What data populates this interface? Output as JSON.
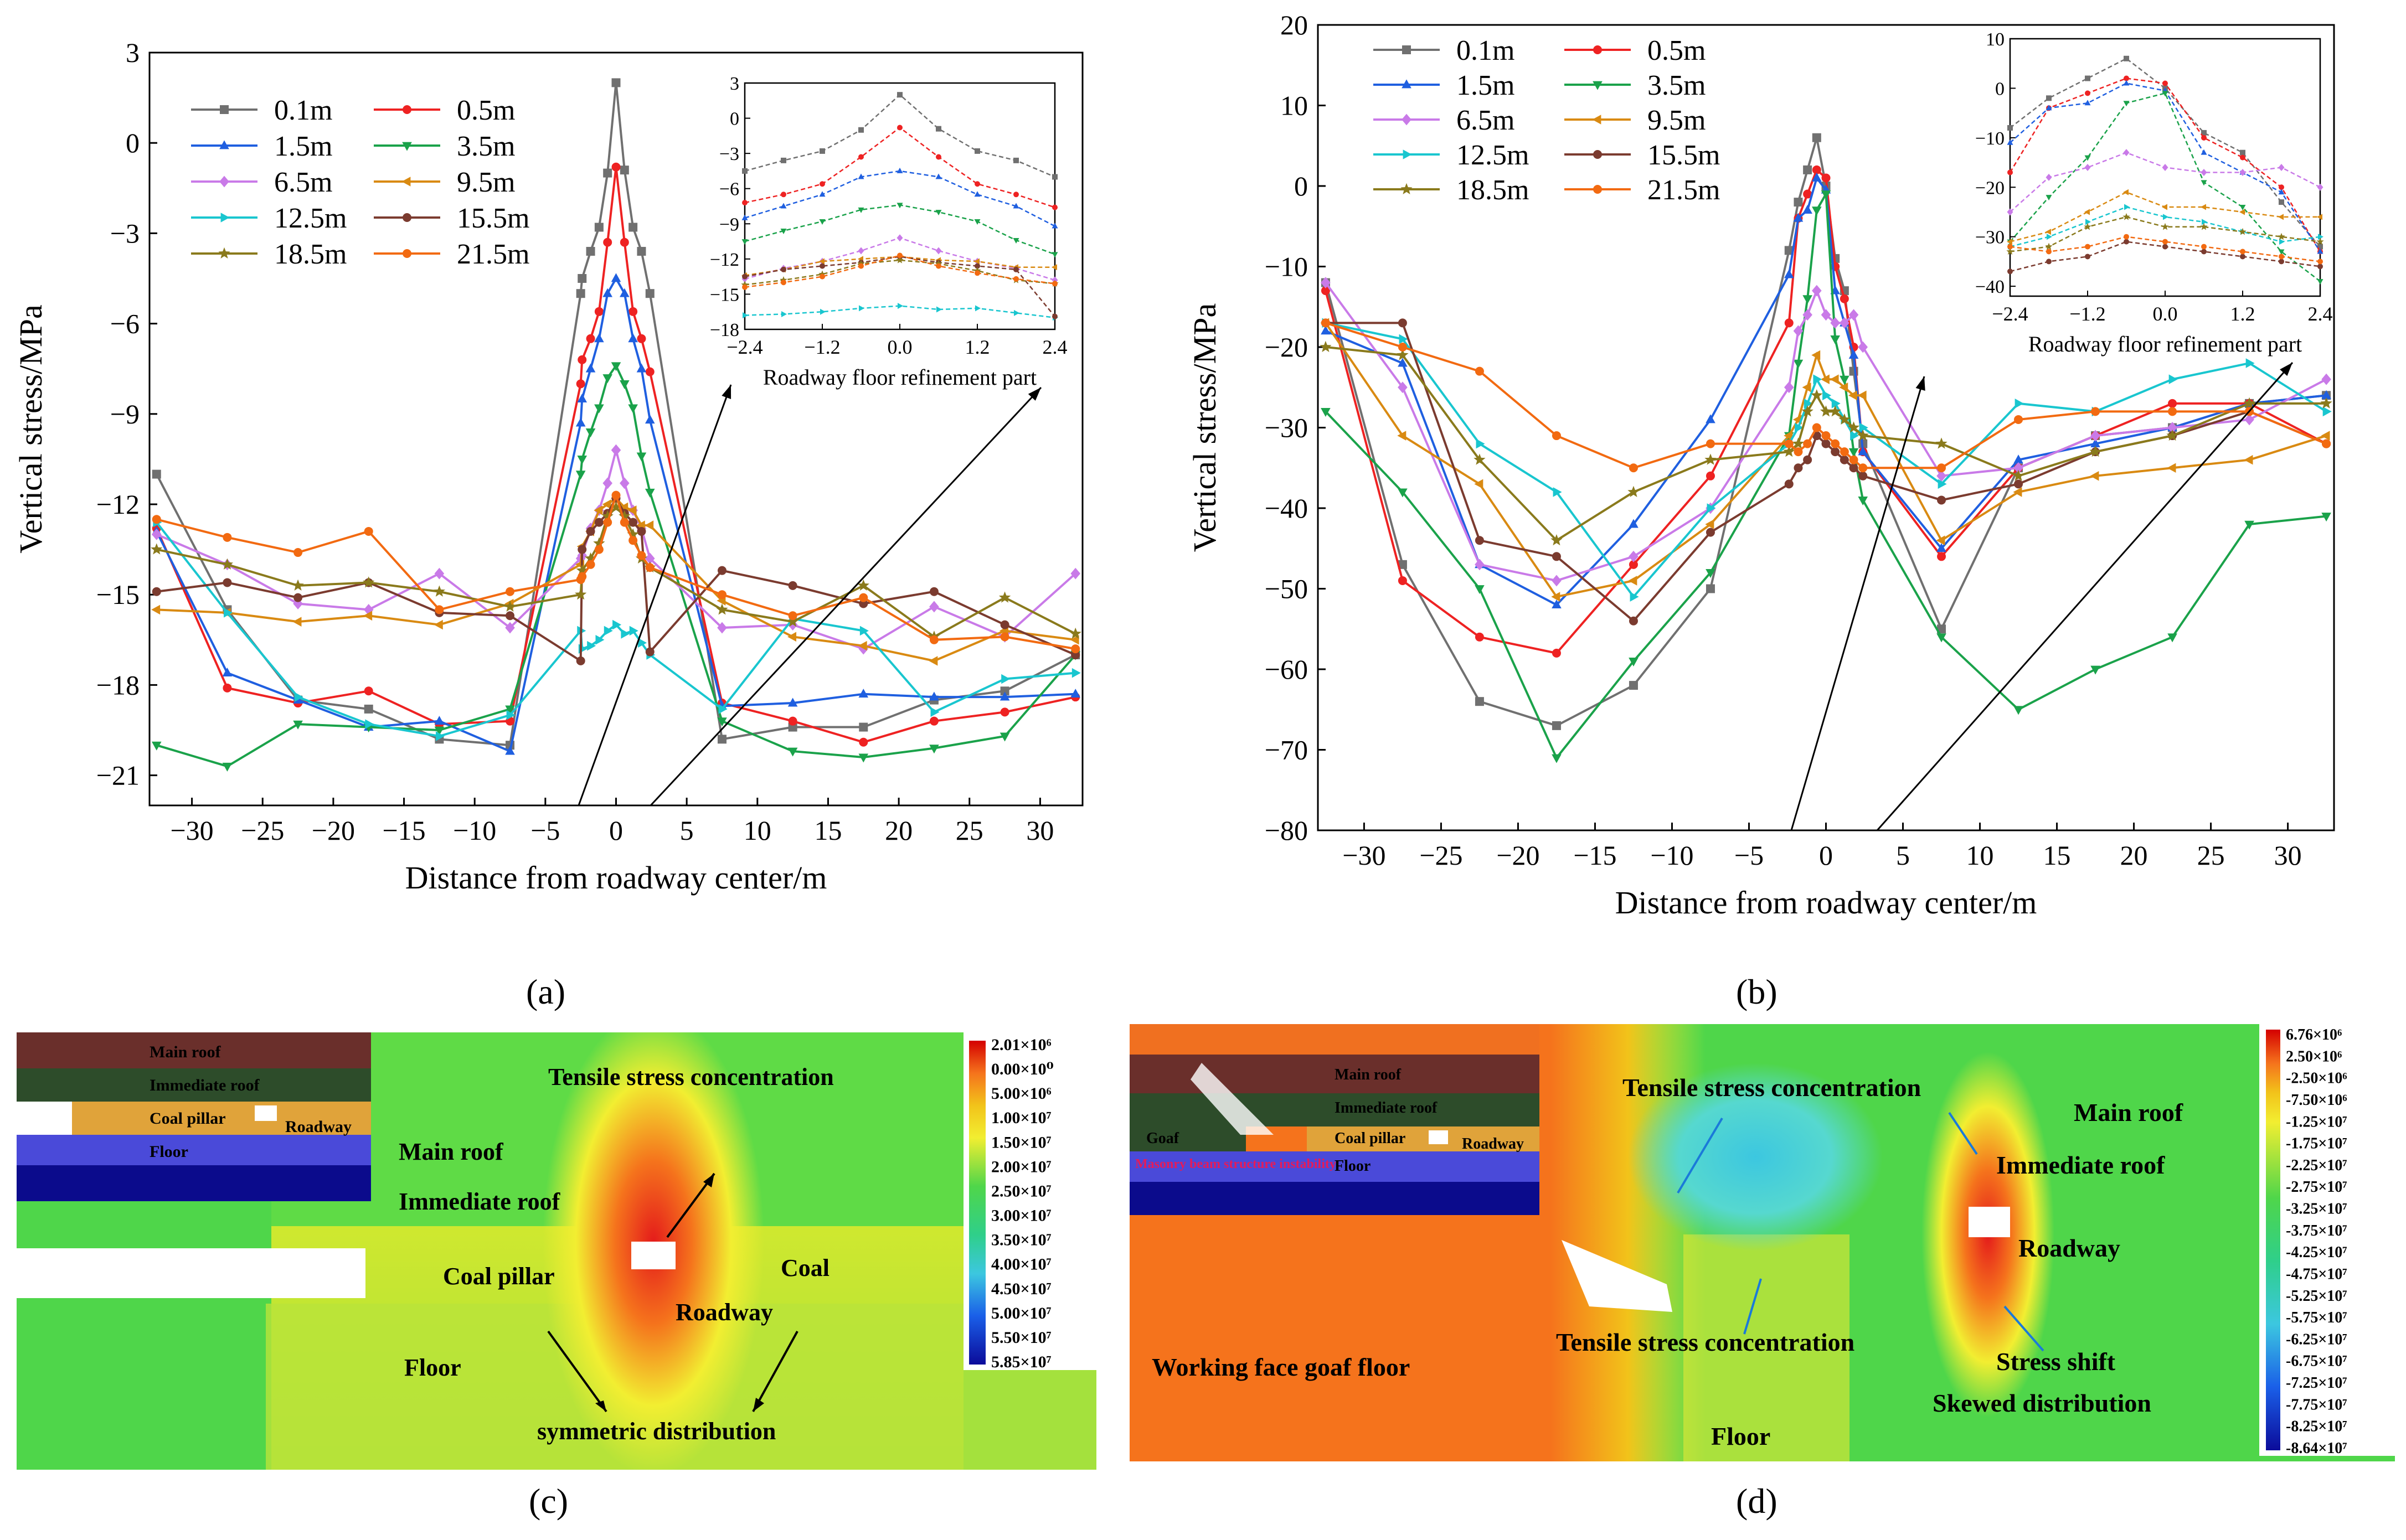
{
  "panel_labels": {
    "a": "(a)",
    "b": "(b)",
    "c": "(c)",
    "d": "(d)"
  },
  "legend_layers": {
    "main_roof": "Main roof",
    "immediate_roof": "Immediate roof",
    "coal_pillar": "Coal pillar",
    "roadway": "Roadway",
    "floor": "Floor",
    "goaf": "Goaf",
    "masonry": "Masonry beam structure instability"
  },
  "annotations_c": {
    "tensile": "Tensile stress concentration",
    "main_roof": "Main roof",
    "immediate_roof": "Immediate roof",
    "coal_pillar": "Coal pillar",
    "coal": "Coal",
    "roadway": "Roadway",
    "floor": "Floor",
    "symmetric": "symmetric distribution"
  },
  "annotations_d": {
    "tensile_top": "Tensile stress concentration",
    "main_roof": "Main roof",
    "immediate_roof": "Immediate roof",
    "roadway": "Roadway",
    "working_face": "Working face goaf floor",
    "tensile_bottom": "Tensile stress concentration",
    "stress_shift": "Stress shift",
    "skewed": "Skewed distribution",
    "floor": "Floor"
  },
  "colorbar_c": [
    "2.01×10⁶",
    "0.00×10⁰",
    "5.00×10⁶",
    "1.00×10⁷",
    "1.50×10⁷",
    "2.00×10⁷",
    "2.50×10⁷",
    "3.00×10⁷",
    "3.50×10⁷",
    "4.00×10⁷",
    "4.50×10⁷",
    "5.00×10⁷",
    "5.50×10⁷",
    "5.85×10⁷"
  ],
  "colorbar_d": [
    "6.76×10⁶",
    "2.50×10⁶",
    "-2.50×10⁶",
    "-7.50×10⁶",
    "-1.25×10⁷",
    "-1.75×10⁷",
    "-2.25×10⁷",
    "-2.75×10⁷",
    "-3.25×10⁷",
    "-3.75×10⁷",
    "-4.25×10⁷",
    "-4.75×10⁷",
    "-5.25×10⁷",
    "-5.75×10⁷",
    "-6.25×10⁷",
    "-6.75×10⁷",
    "-7.25×10⁷",
    "-7.75×10⁷",
    "-8.25×10⁷",
    "-8.64×10⁷"
  ],
  "colors": {
    "s0": "#707070",
    "s1": "#ee2222",
    "s2": "#1f5fe0",
    "s3": "#1aa24a",
    "s4": "#c97ae8",
    "s5": "#d98a12",
    "s6": "#19c6cf",
    "s7": "#7b3b2f",
    "s8": "#8a7a1c",
    "s9": "#f26a11",
    "bg_green": "#4fd64a",
    "yellow": "#f2ee31",
    "orange": "#f5731c",
    "red": "#e41b1b",
    "cyan": "#56d8cf"
  },
  "chart_data": [
    {
      "id": "a",
      "type": "line",
      "title": "",
      "xlabel": "Distance from roadway center/m",
      "ylabel": "Vertical stress/MPa",
      "xlim": [
        -33,
        33
      ],
      "ylim": [
        -22,
        3
      ],
      "xticks": [
        "-30",
        "-25",
        "-20",
        "-15",
        "-10",
        "-5",
        "0",
        "5",
        "10",
        "15",
        "20",
        "25",
        "30"
      ],
      "xtick_values": [
        -30,
        -25,
        -20,
        -15,
        -10,
        -5,
        0,
        5,
        10,
        15,
        20,
        25,
        30
      ],
      "yticks": [
        "3",
        "0",
        "-3",
        "-6",
        "-9",
        "-12",
        "-15",
        "-18",
        "-21"
      ],
      "ytick_values": [
        3,
        0,
        -3,
        -6,
        -9,
        -12,
        -15,
        -18,
        -21
      ],
      "x": [
        -32.5,
        -27.5,
        -22.5,
        -17.5,
        -12.5,
        -7.5,
        -2.5,
        -2.4,
        -1.8,
        -1.2,
        -0.6,
        0,
        0.6,
        1.2,
        1.8,
        2.4,
        7.5,
        12.5,
        17.5,
        22.5,
        27.5,
        32.5
      ],
      "legend": [
        "0.1m",
        "0.5m",
        "1.5m",
        "3.5m",
        "6.5m",
        "9.5m",
        "12.5m",
        "15.5m",
        "18.5m",
        "21.5m"
      ],
      "series": [
        {
          "name": "0.1m",
          "values": [
            -11,
            -15.5,
            -18.5,
            -18.8,
            -19.8,
            -20,
            -5,
            -4.5,
            -3.6,
            -2.8,
            -1,
            2,
            -0.9,
            -2.8,
            -3.6,
            -5,
            -19.8,
            -19.4,
            -19.4,
            -18.5,
            -18.2,
            -17
          ]
        },
        {
          "name": "0.5m",
          "values": [
            -12.8,
            -18.1,
            -18.6,
            -18.2,
            -19.3,
            -19.2,
            -8,
            -7.2,
            -6.5,
            -5.6,
            -3.3,
            -0.8,
            -3.3,
            -5.6,
            -6.5,
            -7.6,
            -18.6,
            -19.2,
            -19.9,
            -19.2,
            -18.9,
            -18.4
          ]
        },
        {
          "name": "1.5m",
          "values": [
            -12.9,
            -17.6,
            -18.5,
            -19.4,
            -19.2,
            -20.2,
            -9.3,
            -8.5,
            -7.5,
            -6.5,
            -5,
            -4.5,
            -5,
            -6.5,
            -7.5,
            -9.2,
            -18.7,
            -18.6,
            -18.3,
            -18.4,
            -18.4,
            -18.3
          ]
        },
        {
          "name": "3.5m",
          "values": [
            -20,
            -20.7,
            -19.3,
            -19.4,
            -19.5,
            -18.8,
            -11,
            -10.5,
            -9.6,
            -8.8,
            -7.8,
            -7.4,
            -8,
            -8.8,
            -10.4,
            -11.6,
            -19.2,
            -20.2,
            -20.4,
            -20.1,
            -19.7,
            -17
          ]
        },
        {
          "name": "6.5m",
          "values": [
            -13,
            -14,
            -15.3,
            -15.5,
            -14.3,
            -16.1,
            -13.8,
            -13.7,
            -12.8,
            -12.2,
            -11.3,
            -10.2,
            -11.3,
            -12.2,
            -12.8,
            -13.8,
            -16.1,
            -16,
            -16.8,
            -15.4,
            -16.4,
            -14.3
          ]
        },
        {
          "name": "9.5m",
          "values": [
            -15.5,
            -15.6,
            -15.9,
            -15.7,
            -16,
            -15.3,
            -14,
            -13.4,
            -12.9,
            -12.2,
            -12,
            -11.8,
            -12.1,
            -12.2,
            -12.7,
            -12.7,
            -15.2,
            -16.4,
            -16.7,
            -17.2,
            -16.2,
            -16.5
          ]
        },
        {
          "name": "12.5m",
          "values": [
            -12.6,
            -15.6,
            -18.4,
            -19.3,
            -19.7,
            -19,
            -16.2,
            -16.8,
            -16.7,
            -16.5,
            -16.2,
            -16,
            -16.3,
            -16.2,
            -16.6,
            -17,
            -18.8,
            -15.8,
            -16.2,
            -18.9,
            -17.8,
            -17.6
          ]
        },
        {
          "name": "15.5m",
          "values": [
            -14.9,
            -14.6,
            -15.1,
            -14.6,
            -15.6,
            -15.7,
            -17.2,
            -13.5,
            -12.9,
            -12.6,
            -12.3,
            -11.8,
            -12.3,
            -12.6,
            -12.9,
            -16.9,
            -14.2,
            -14.7,
            -15.3,
            -14.9,
            -16,
            -17
          ]
        },
        {
          "name": "18.5m",
          "values": [
            -13.5,
            -14,
            -14.7,
            -14.6,
            -14.9,
            -15.4,
            -15,
            -14.2,
            -13.8,
            -13.3,
            -12.4,
            -12.1,
            -12.4,
            -13,
            -13.8,
            -14.1,
            -15.5,
            -15.9,
            -14.7,
            -16.4,
            -15.1,
            -16.3
          ]
        },
        {
          "name": "21.5m",
          "values": [
            -12.5,
            -13.1,
            -13.6,
            -12.9,
            -15.5,
            -14.9,
            -14.5,
            -14.4,
            -14,
            -13.5,
            -12.6,
            -11.7,
            -12.6,
            -13.2,
            -13.7,
            -14.1,
            -15,
            -15.7,
            -15.1,
            -16.5,
            -16.4,
            -16.8
          ]
        }
      ],
      "inset": {
        "title": "Roadway floor refinement part",
        "xlim": [
          -2.4,
          2.4
        ],
        "ylim": [
          -18,
          3
        ],
        "xticks": [
          "-2.4",
          "-1.2",
          "0.0",
          "1.2",
          "2.4"
        ],
        "xtick_values": [
          -2.4,
          -1.2,
          0,
          1.2,
          2.4
        ],
        "yticks": [
          "3",
          "0",
          "-3",
          "-6",
          "-9",
          "-12",
          "-15",
          "-18"
        ],
        "ytick_values": [
          3,
          0,
          -3,
          -6,
          -9,
          -12,
          -15,
          -18
        ],
        "x": [
          -2.4,
          -1.8,
          -1.2,
          -0.6,
          0,
          0.6,
          1.2,
          1.8,
          2.4
        ]
      }
    },
    {
      "id": "b",
      "type": "line",
      "title": "",
      "xlabel": "Distance from roadway center/m",
      "ylabel": "Vertical stress/MPa",
      "xlim": [
        -33,
        33
      ],
      "ylim": [
        -80,
        20
      ],
      "xticks": [
        "-30",
        "-25",
        "-20",
        "-15",
        "-10",
        "-5",
        "0",
        "5",
        "10",
        "15",
        "20",
        "25",
        "30"
      ],
      "xtick_values": [
        -30,
        -25,
        -20,
        -15,
        -10,
        -5,
        0,
        5,
        10,
        15,
        20,
        25,
        30
      ],
      "yticks": [
        "20",
        "10",
        "0",
        "-10",
        "-20",
        "-30",
        "-40",
        "-50",
        "-60",
        "-70",
        "-80"
      ],
      "ytick_values": [
        20,
        10,
        0,
        -10,
        -20,
        -30,
        -40,
        -50,
        -60,
        -70,
        -80
      ],
      "x": [
        -32.5,
        -27.5,
        -22.5,
        -17.5,
        -12.5,
        -7.5,
        -2.4,
        -1.8,
        -1.2,
        -0.6,
        0,
        0.6,
        1.2,
        1.8,
        2.4,
        7.5,
        12.5,
        17.5,
        22.5,
        27.5,
        32.5
      ],
      "legend": [
        "0.1m",
        "0.5m",
        "1.5m",
        "3.5m",
        "6.5m",
        "9.5m",
        "12.5m",
        "15.5m",
        "18.5m",
        "21.5m"
      ],
      "series": [
        {
          "name": "0.1m",
          "values": [
            -12,
            -47,
            -64,
            -67,
            -62,
            -50,
            -8,
            -2,
            2,
            6,
            0,
            -9,
            -13,
            -23,
            -32,
            -55,
            -35,
            -31,
            -30,
            -27,
            -26
          ]
        },
        {
          "name": "0.5m",
          "values": [
            -13,
            -49,
            -56,
            -58,
            -47,
            -36,
            -17,
            -4,
            -1,
            2,
            1,
            -10,
            -14,
            -20,
            -33,
            -46,
            -35,
            -31,
            -27,
            -27,
            -32
          ]
        },
        {
          "name": "1.5m",
          "values": [
            -18,
            -22,
            -47,
            -52,
            -42,
            -29,
            -11,
            -4,
            -3,
            1,
            -0.5,
            -13,
            -17,
            -21,
            -33,
            -45,
            -34,
            -32,
            -30,
            -27,
            -26
          ]
        },
        {
          "name": "3.5m",
          "values": [
            -28,
            -38,
            -50,
            -71,
            -59,
            -48,
            -31,
            -22,
            -14,
            -3,
            -1,
            -19,
            -24,
            -33,
            -39,
            -56,
            -65,
            -60,
            -56,
            -42,
            -41
          ]
        },
        {
          "name": "6.5m",
          "values": [
            -12,
            -25,
            -47,
            -49,
            -46,
            -40,
            -25,
            -18,
            -16,
            -13,
            -16,
            -17,
            -17,
            -16,
            -20,
            -36,
            -35,
            -31,
            -30,
            -29,
            -24
          ]
        },
        {
          "name": "9.5m",
          "values": [
            -17,
            -31,
            -37,
            -51,
            -49,
            -42,
            -31,
            -29,
            -25,
            -21,
            -24,
            -24,
            -25,
            -26,
            -26,
            -44,
            -38,
            -36,
            -35,
            -34,
            -31
          ]
        },
        {
          "name": "12.5m",
          "values": [
            -17,
            -19,
            -32,
            -38,
            -51,
            -40,
            -32,
            -30,
            -27,
            -24,
            -26,
            -27,
            -29,
            -31,
            -30,
            -37,
            -27,
            -28,
            -24,
            -22,
            -28
          ]
        },
        {
          "name": "15.5m",
          "values": [
            -17,
            -17,
            -44,
            -46,
            -54,
            -43,
            -37,
            -35,
            -34,
            -31,
            -32,
            -33,
            -34,
            -35,
            -36,
            -39,
            -37,
            -33,
            -31,
            -28,
            -32
          ]
        },
        {
          "name": "18.5m",
          "values": [
            -20,
            -21,
            -34,
            -44,
            -38,
            -34,
            -33,
            -32,
            -28,
            -26,
            -28,
            -28,
            -29,
            -30,
            -31,
            -32,
            -36,
            -33,
            -31,
            -27,
            -27
          ]
        },
        {
          "name": "21.5m",
          "values": [
            -17,
            -20,
            -23,
            -31,
            -35,
            -32,
            -32,
            -33,
            -32,
            -30,
            -31,
            -32,
            -33,
            -34,
            -35,
            -35,
            -29,
            -28,
            -28,
            -28,
            -32
          ]
        }
      ],
      "inset": {
        "title": "Roadway floor refinement part",
        "xlim": [
          -2.4,
          2.4
        ],
        "ylim": [
          -42,
          10
        ],
        "xticks": [
          "-2.4",
          "-1.2",
          "0.0",
          "1.2",
          "2.4"
        ],
        "xtick_values": [
          -2.4,
          -1.2,
          0,
          1.2,
          2.4
        ],
        "yticks": [
          "10",
          "0",
          "-10",
          "-20",
          "-30",
          "-40"
        ],
        "ytick_values": [
          10,
          0,
          -10,
          -20,
          -30,
          -40
        ],
        "x": [
          -2.4,
          -1.8,
          -1.2,
          -0.6,
          0,
          0.6,
          1.2,
          1.8,
          2.4
        ]
      }
    }
  ]
}
